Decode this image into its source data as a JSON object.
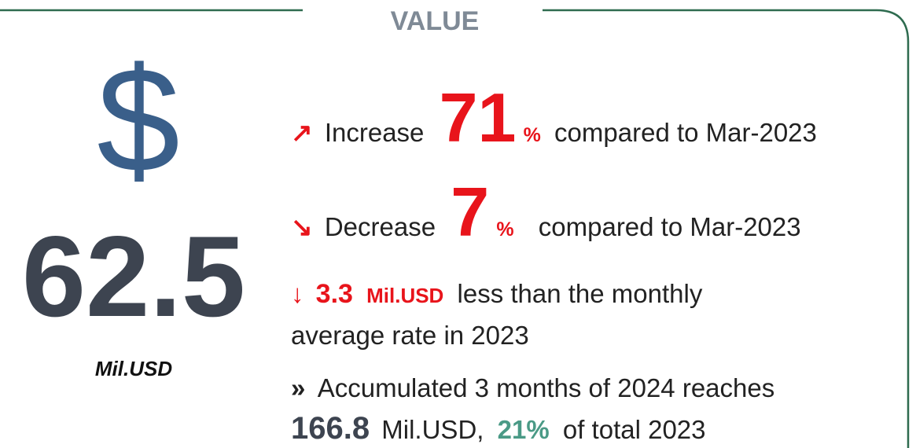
{
  "header": {
    "title": "VALUE"
  },
  "summary": {
    "symbol": "$",
    "value": "62.5",
    "unit": "Mil.USD"
  },
  "lines": [
    {
      "icon": "↗",
      "parts": [
        "Increase",
        "71",
        "%",
        "compared to Mar-2023"
      ]
    },
    {
      "icon": "↘",
      "parts": [
        "Decrease",
        "7",
        "%",
        "compared to Mar-2023"
      ]
    },
    {
      "icon": "↓",
      "parts": [
        "3.3",
        "Mil.USD",
        "less than the monthly"
      ],
      "wrap": "average rate in 2023"
    },
    {
      "icon": "»",
      "parts": [
        "Accumulated 3 months of 2024 reaches"
      ],
      "wrap_parts": [
        "166.8",
        "Mil.USD,",
        "21%",
        "of total 2023"
      ]
    }
  ]
}
